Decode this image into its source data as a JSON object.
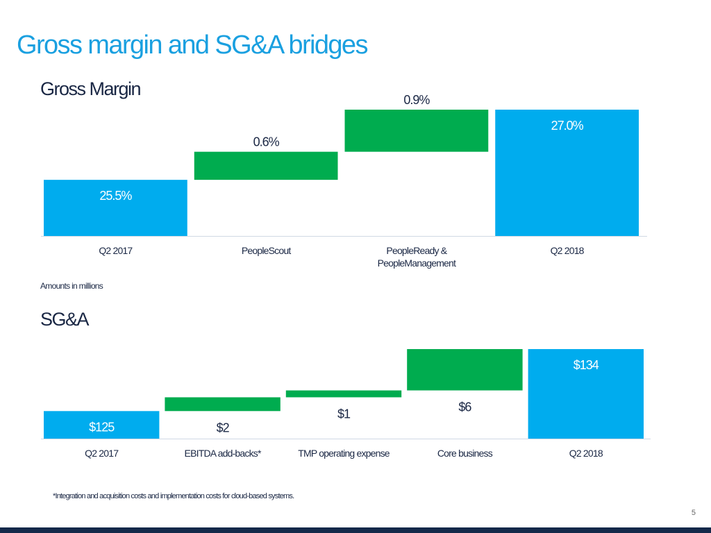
{
  "slide": {
    "title": "Gross margin and SG&A bridges",
    "page_number": "5",
    "amounts_note": "Amounts in millions",
    "footnote": "*Integration and acquisition costs and implementation costs for cloud-based systems."
  },
  "colors": {
    "title": "#1aa0e0",
    "total_bar": "#00acee",
    "increase_bar": "#00ac4f",
    "text_dark": "#1a2744",
    "axis": "#d0d8e4",
    "footer_bar": "#14294a"
  },
  "chart_data": [
    {
      "type": "bar",
      "subtype": "waterfall",
      "title": "Gross Margin",
      "categories": [
        "Q2 2017",
        "PeopleScout",
        "PeopleReady & PeopleManagement",
        "Q2 2018"
      ],
      "category_lines": [
        [
          "Q2 2017"
        ],
        [
          "PeopleScout"
        ],
        [
          "PeopleReady &",
          "PeopleManagement"
        ],
        [
          "Q2 2018"
        ]
      ],
      "values": [
        25.5,
        0.6,
        0.9,
        27.0
      ],
      "kinds": [
        "total",
        "increase",
        "increase",
        "total"
      ],
      "labels": [
        "25.5%",
        "0.6%",
        "0.9%",
        "27.0%"
      ],
      "unit": "%",
      "xlabel": "",
      "ylabel": "",
      "ylim": [
        24.3,
        27.0
      ],
      "grid": false,
      "legend": "none"
    },
    {
      "type": "bar",
      "subtype": "waterfall",
      "title": "SG&A",
      "categories": [
        "Q2 2017",
        "EBITDA add-backs*",
        "TMP operating expense",
        "Core business",
        "Q2 2018"
      ],
      "category_lines": [
        [
          "Q2 2017"
        ],
        [
          "EBITDA add-backs*"
        ],
        [
          "TMP operating expense"
        ],
        [
          "Core business"
        ],
        [
          "Q2 2018"
        ]
      ],
      "values": [
        125,
        2,
        1,
        6,
        134
      ],
      "kinds": [
        "total",
        "increase",
        "increase",
        "increase",
        "total"
      ],
      "labels": [
        "$125",
        "$2",
        "$1",
        "$6",
        "$134"
      ],
      "unit": "$M",
      "xlabel": "",
      "ylabel": "",
      "ylim": [
        121.0,
        134.0
      ],
      "grid": false,
      "legend": "none"
    }
  ]
}
